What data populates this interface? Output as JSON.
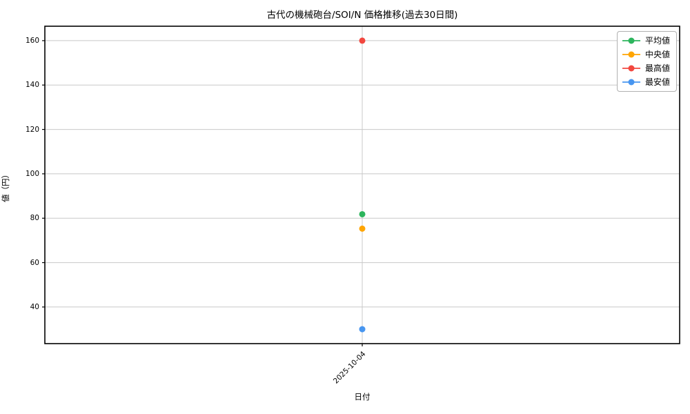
{
  "chart_data": {
    "type": "scatter",
    "title": "古代の機械砲台/SOI/N 価格推移(過去30日間)",
    "xlabel": "日付",
    "ylabel": "値（円）",
    "x_categories": [
      "2025-10-04"
    ],
    "series": [
      {
        "name": "平均値",
        "color": "#2db55d",
        "values": [
          81.8
        ]
      },
      {
        "name": "中央値",
        "color": "#ffa502",
        "values": [
          75.3
        ]
      },
      {
        "name": "最高値",
        "color": "#f2473f",
        "values": [
          160
        ]
      },
      {
        "name": "最安値",
        "color": "#4896f0",
        "values": [
          30
        ]
      }
    ],
    "ylim": [
      23.5,
      166.5
    ],
    "yticks": [
      40,
      60,
      80,
      100,
      120,
      140,
      160
    ],
    "grid": true,
    "grid_color": "#c8c8c8",
    "spine_color": "#000000",
    "legend_position": "top-right"
  }
}
